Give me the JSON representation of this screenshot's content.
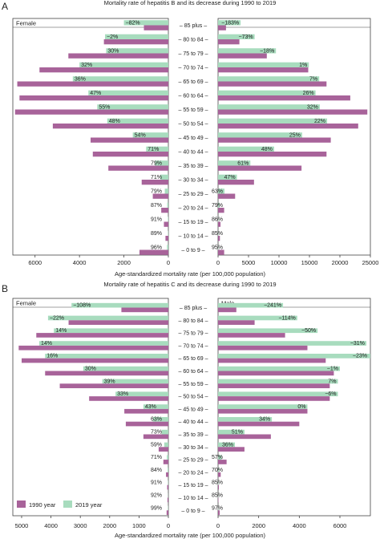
{
  "colors": {
    "bar1990": "#a8639a",
    "bar2019": "#a8dcbe",
    "frame": "#444444",
    "text": "#222222"
  },
  "legend": {
    "item1990": "1990 year",
    "item2019": "2019 year"
  },
  "chart_data": [
    {
      "type": "bar",
      "panel_letter": "A",
      "title": "Mortality rate  of hepatitis B and its decrease during 1990 to 2019",
      "xlabel": "Age-standardized mortality rate (per 100,000 population)",
      "left_title": "Female",
      "right_title": "Male",
      "categories": [
        "85 plus",
        "80 to 84",
        "75 to 79",
        "70 to 74",
        "65 to 69",
        "60 to 64",
        "55 to 59",
        "50 to 54",
        "45 to 49",
        "40 to 44",
        "35 to 39",
        "30 to 34",
        "25 to 29",
        "20 to 24",
        "15 to 19",
        "10 to 14",
        "0 to 9"
      ],
      "female": {
        "xlim": [
          7000,
          0
        ],
        "ticks": [
          6000,
          4000,
          2000,
          0
        ],
        "tick_labels": [
          "6000",
          "4000",
          "2000",
          "0"
        ],
        "series": [
          {
            "name": "1990 year",
            "values": [
              1100,
              2900,
              4500,
              5800,
              6800,
              6700,
              6900,
              5200,
              3500,
              3400,
              2700,
              1200,
              700,
              320,
              200,
              130,
              1300
            ]
          },
          {
            "name": "2019 year",
            "values": [
              2000,
              2850,
              2800,
              4000,
              4300,
              3600,
              3200,
              2750,
              1600,
              1000,
              600,
              360,
              160,
              50,
              20,
              15,
              60
            ]
          }
        ],
        "labels": [
          "−82%",
          "−2%",
          "30%",
          "32%",
          "36%",
          "47%",
          "55%",
          "48%",
          "54%",
          "71%",
          "79%",
          "71%",
          "79%",
          "87%",
          "91%",
          "89%",
          "96%"
        ]
      },
      "male": {
        "xlim": [
          0,
          25000
        ],
        "ticks": [
          0,
          5000,
          10000,
          15000,
          20000,
          25000
        ],
        "tick_labels": [
          "0",
          "5000",
          "10000",
          "15000",
          "20000",
          "25000"
        ],
        "series": [
          {
            "name": "1990 year",
            "values": [
              1300,
              3500,
              8000,
              14800,
              17800,
              21700,
              24500,
              23000,
              18500,
              17800,
              13700,
              5900,
              2800,
              1000,
              400,
              300,
              1000
            ]
          },
          {
            "name": "2019 year",
            "values": [
              3700,
              6000,
              9500,
              14900,
              16600,
              16000,
              16700,
              17900,
              13800,
              9200,
              5300,
              3100,
              1050,
              210,
              60,
              50,
              50
            ]
          }
        ],
        "labels": [
          "−183%",
          "−73%",
          "−18%",
          "1%",
          "7%",
          "26%",
          "32%",
          "22%",
          "25%",
          "48%",
          "61%",
          "47%",
          "63%",
          "79%",
          "86%",
          "85%",
          "95%"
        ]
      }
    },
    {
      "type": "bar",
      "panel_letter": "B",
      "title": "Mortality rate  of hepatitis C and its decrease during 1990 to 2019",
      "xlabel": "Age-standardized mortality rate (per 100,000 population)",
      "left_title": "Female",
      "right_title": "Male",
      "categories": [
        "85 plus",
        "80 to 84",
        "75 to 79",
        "70 to 74",
        "65 to 69",
        "60 to 64",
        "55 to 59",
        "50 to 54",
        "45 to 49",
        "40 to 44",
        "35 to 39",
        "30 to 34",
        "25 to 29",
        "20 to 24",
        "15 to 19",
        "10 to 14",
        "0 to 9"
      ],
      "female": {
        "xlim": [
          5300,
          0
        ],
        "ticks": [
          5000,
          4000,
          3000,
          2000,
          1000,
          0
        ],
        "tick_labels": [
          "5000",
          "4000",
          "3000",
          "2000",
          "1000",
          "0"
        ],
        "series": [
          {
            "name": "1990 year",
            "values": [
              1600,
              3400,
              4500,
              5100,
              5000,
              4200,
              3700,
              2700,
              1500,
              1450,
              850,
              330,
              170,
              80,
              40,
              30,
              60
            ]
          },
          {
            "name": "2019 year",
            "values": [
              3300,
              4100,
              3900,
              4400,
              4200,
              2900,
              2250,
              1800,
              850,
              530,
              230,
              140,
              50,
              25,
              10,
              5,
              10
            ]
          }
        ],
        "labels": [
          "−108%",
          "−22%",
          "14%",
          "14%",
          "16%",
          "30%",
          "39%",
          "33%",
          "43%",
          "63%",
          "73%",
          "59%",
          "71%",
          "84%",
          "91%",
          "92%",
          "99%"
        ]
      },
      "male": {
        "xlim": [
          0,
          7500
        ],
        "ticks": [
          0,
          2000,
          4000,
          6000
        ],
        "tick_labels": [
          "0",
          "2000",
          "4000",
          "6000"
        ],
        "series": [
          {
            "name": "1990 year",
            "values": [
              900,
              1800,
              3300,
              4400,
              5300,
              5700,
              5500,
              5500,
              4400,
              4000,
              2600,
              1300,
              420,
              130,
              40,
              20,
              80
            ]
          },
          {
            "name": "2019 year",
            "values": [
              3200,
              3900,
              4900,
              7300,
              7500,
              6000,
              5900,
              5900,
              4400,
              2650,
              1300,
              830,
              180,
              40,
              15,
              10,
              10
            ]
          }
        ],
        "labels": [
          "−241%",
          "−114%",
          "−50%",
          "−31%",
          "−23%",
          "−1%",
          "7%",
          "−6%",
          "0%",
          "34%",
          "51%",
          "36%",
          "57%",
          "70%",
          "85%",
          "85%",
          "97%"
        ]
      }
    }
  ]
}
